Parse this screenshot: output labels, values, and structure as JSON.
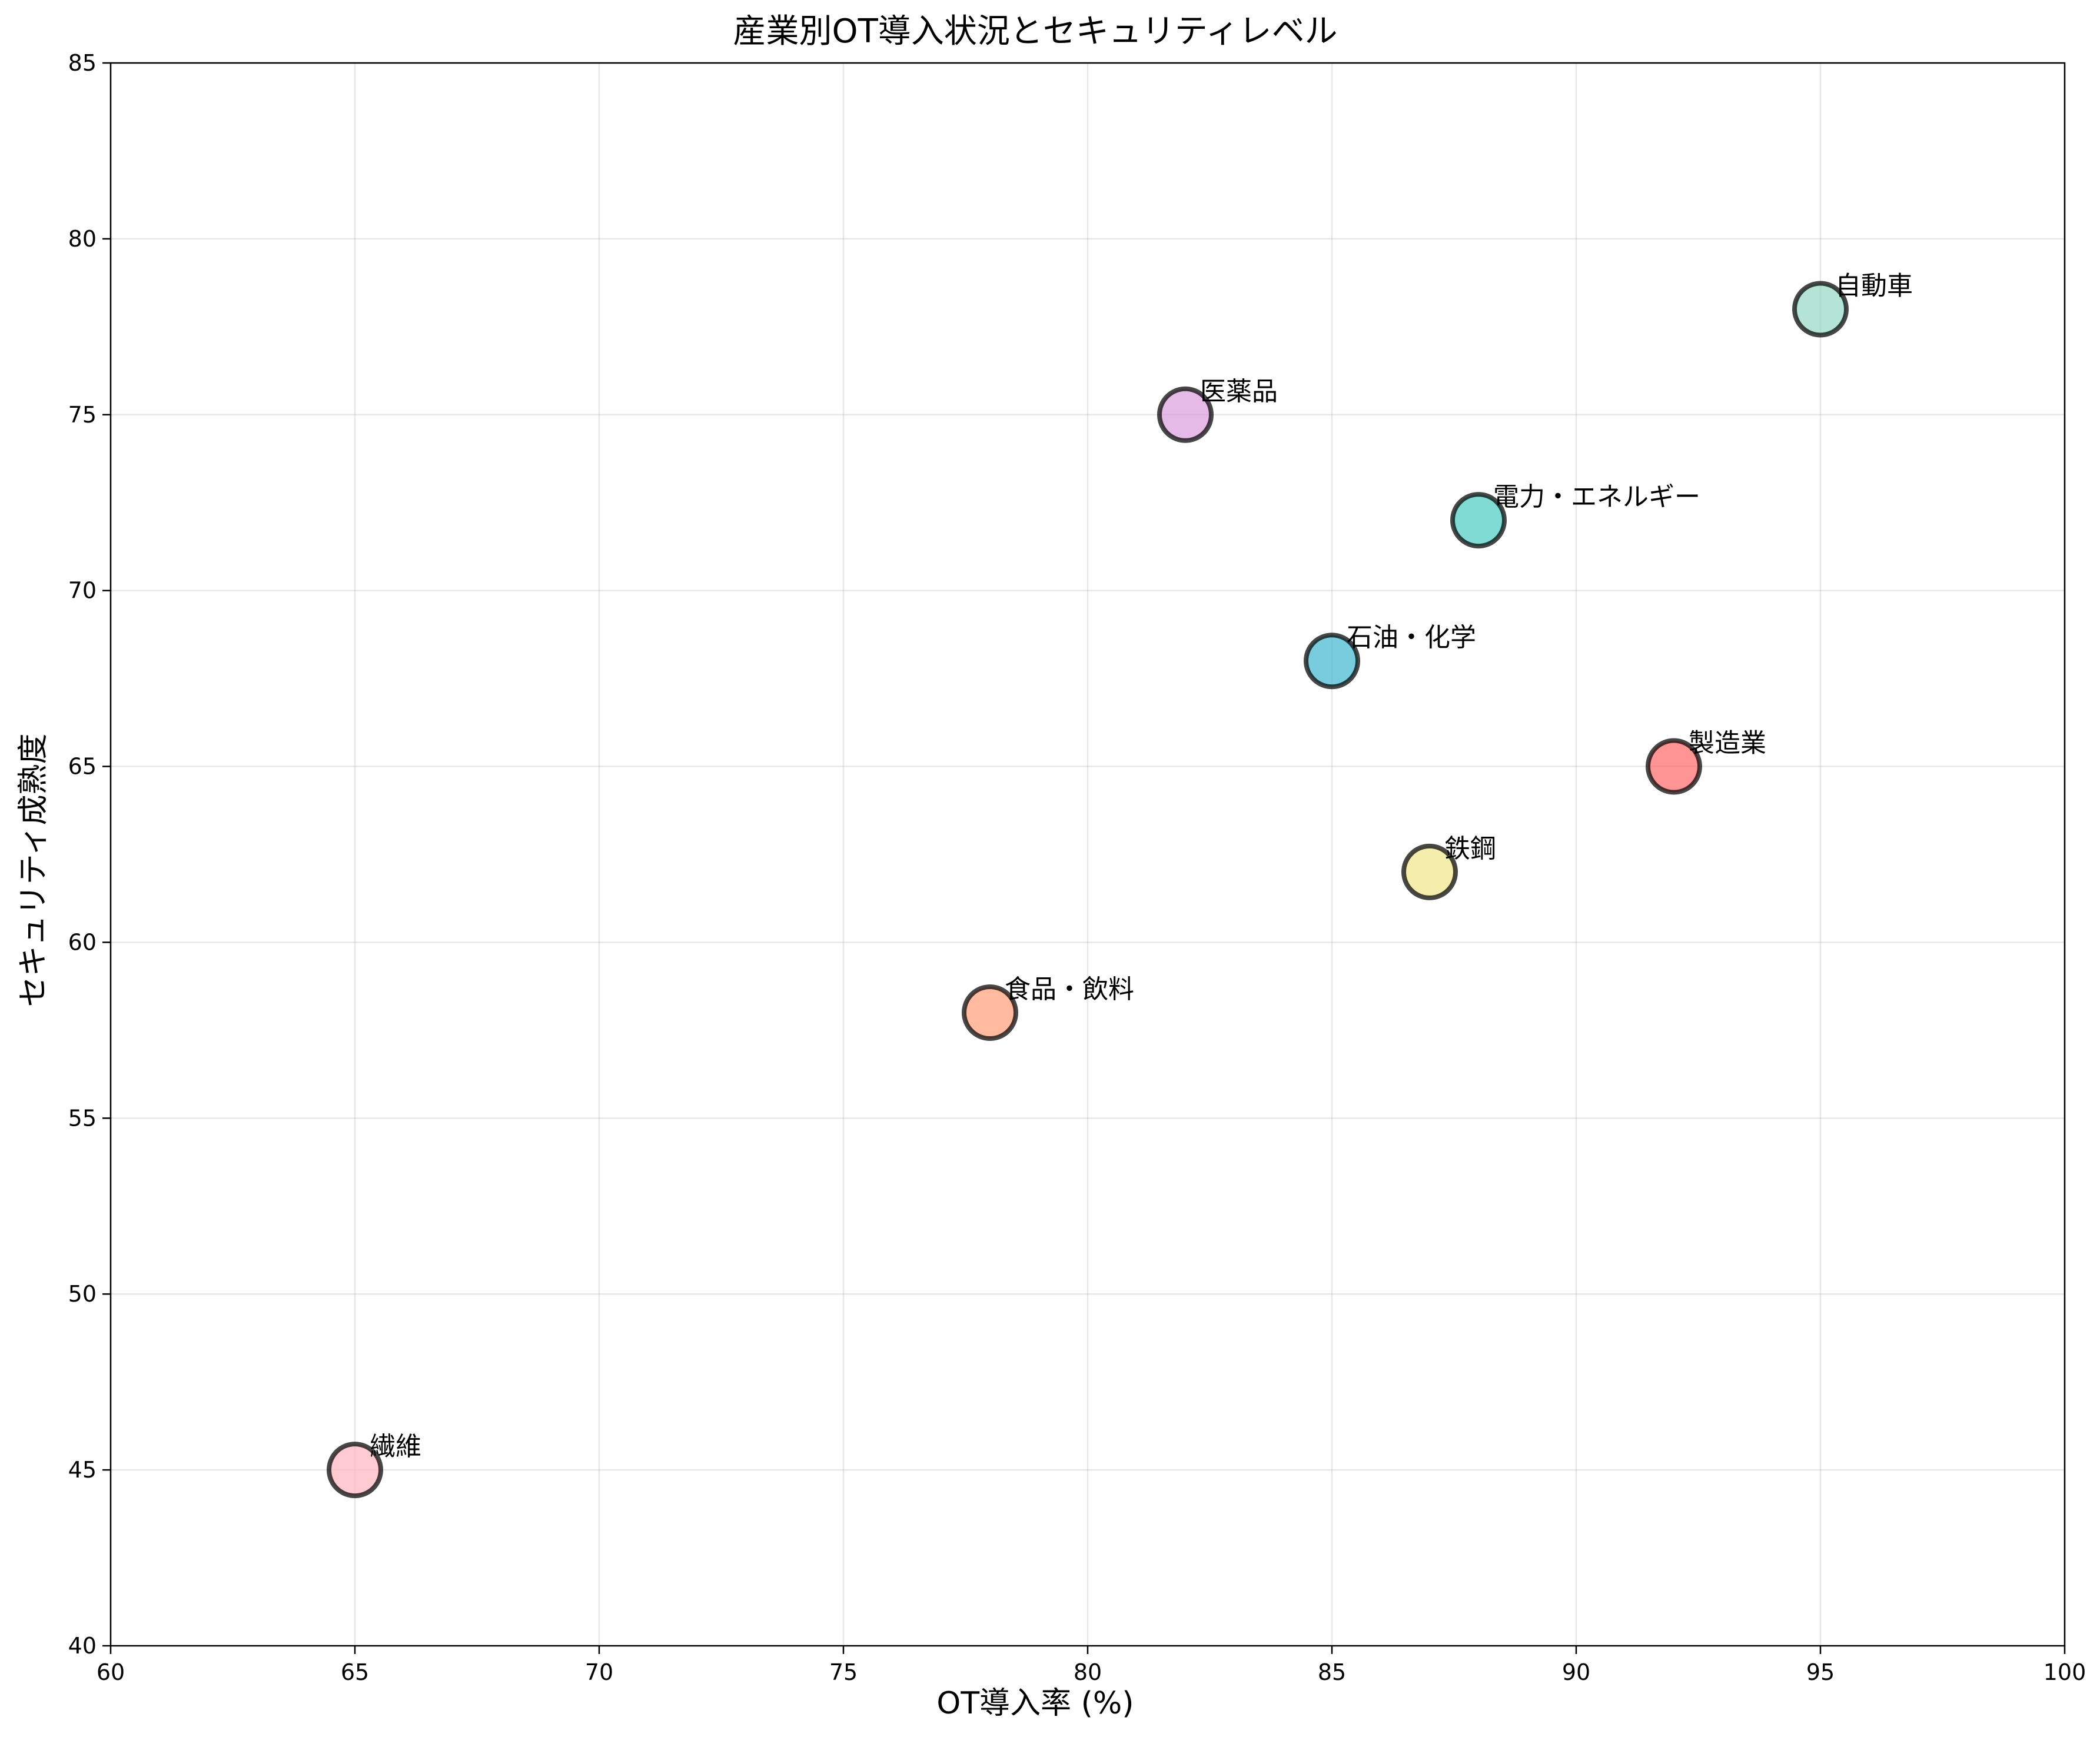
{
  "chart_data": {
    "type": "scatter",
    "title": "産業別OT導入状況とセキュリティレベル",
    "xlabel": "OT導入率 (%)",
    "ylabel": "セキュリティ成熟度",
    "xlim": [
      60,
      100
    ],
    "ylim": [
      40,
      85
    ],
    "xticks": [
      "60",
      "65",
      "70",
      "75",
      "80",
      "85",
      "90",
      "95",
      "100"
    ],
    "yticks": [
      "40",
      "45",
      "50",
      "55",
      "60",
      "65",
      "70",
      "75",
      "80",
      "85"
    ],
    "grid": true,
    "points": [
      {
        "label": "製造業",
        "x": 92,
        "y": 65,
        "color": "#FF6B6B"
      },
      {
        "label": "自動車",
        "x": 95,
        "y": 78,
        "color": "#96D9C6"
      },
      {
        "label": "電力・エネルギー",
        "x": 88,
        "y": 72,
        "color": "#4ECDC4"
      },
      {
        "label": "石油・化学",
        "x": 85,
        "y": 68,
        "color": "#45B7D1"
      },
      {
        "label": "鉄鋼",
        "x": 87,
        "y": 62,
        "color": "#F0E68C"
      },
      {
        "label": "医薬品",
        "x": 82,
        "y": 75,
        "color": "#DDA0DD"
      },
      {
        "label": "食品・飲料",
        "x": 78,
        "y": 58,
        "color": "#FFA07A"
      },
      {
        "label": "繊維",
        "x": 65,
        "y": 45,
        "color": "#FFB6C1"
      }
    ]
  }
}
